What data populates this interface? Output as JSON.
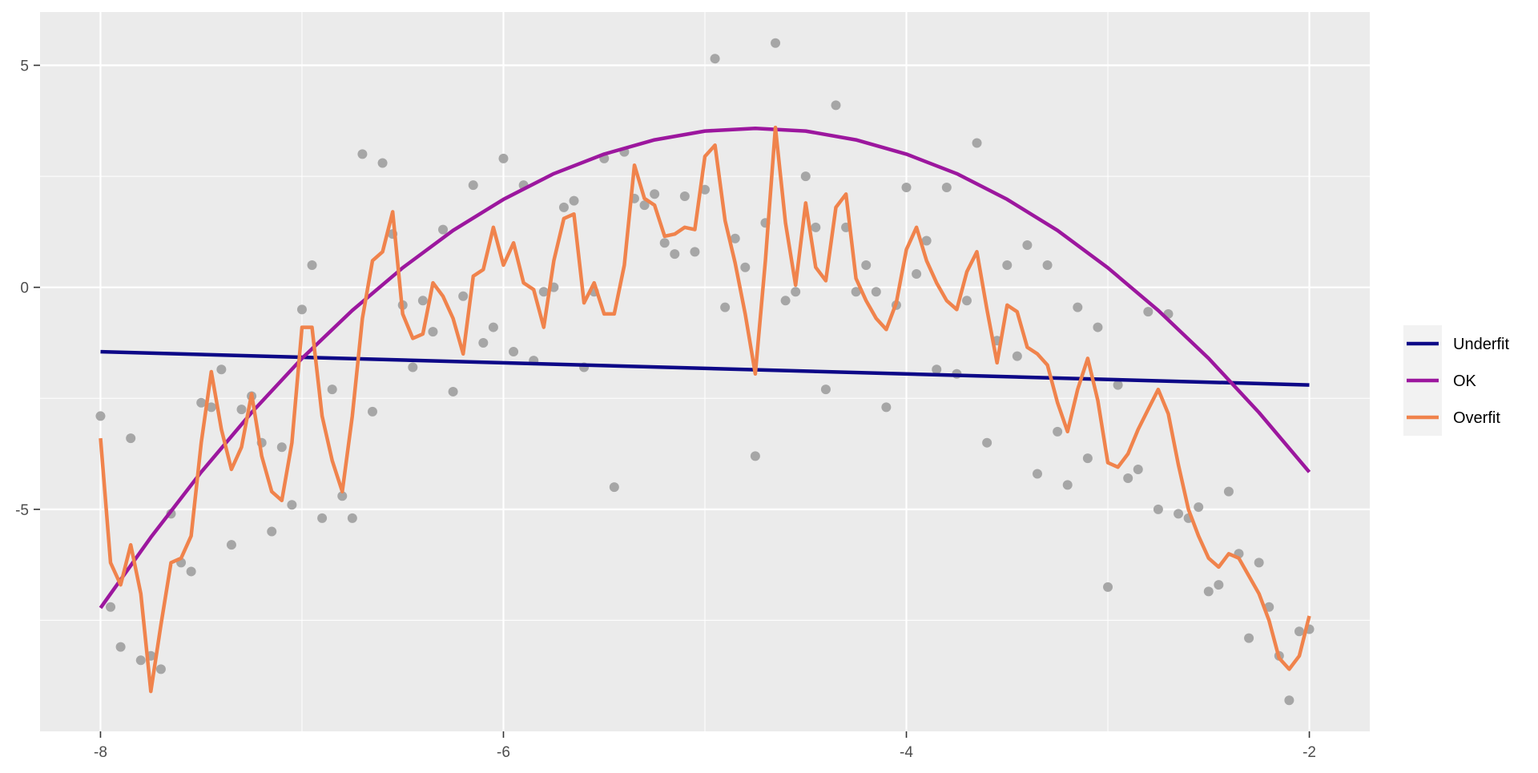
{
  "chart_data": {
    "type": "line",
    "title": "",
    "xlabel": "",
    "ylabel": "",
    "xlim": [
      -8.3,
      -1.7
    ],
    "ylim": [
      -10,
      6.2
    ],
    "x_ticks": [
      -8,
      -6,
      -4,
      -2
    ],
    "x_tick_labels": [
      "-8",
      "-6",
      "-4",
      "-2"
    ],
    "y_ticks": [
      5,
      0,
      -5
    ],
    "y_tick_labels": [
      "5",
      "0",
      "-5"
    ],
    "grid": true,
    "legend": {
      "position": "right",
      "entries": [
        "Underfit",
        "OK",
        "Overfit"
      ]
    },
    "colors": {
      "panel_background": "#EBEBEB",
      "grid": "#FFFFFF",
      "points": "#A6A6A6",
      "Underfit": "#0D0887",
      "OK": "#9C179E",
      "Overfit": "#F0834C"
    },
    "points": {
      "x": [
        -8,
        -7.95,
        -7.9,
        -7.85,
        -7.8,
        -7.75,
        -7.7,
        -7.65,
        -7.6,
        -7.55,
        -7.5,
        -7.45,
        -7.4,
        -7.35,
        -7.3,
        -7.25,
        -7.2,
        -7.15,
        -7.1,
        -7.05,
        -7,
        -6.95,
        -6.9,
        -6.85,
        -6.8,
        -6.75,
        -6.7,
        -6.65,
        -6.6,
        -6.55,
        -6.5,
        -6.45,
        -6.4,
        -6.35,
        -6.3,
        -6.25,
        -6.2,
        -6.15,
        -6.1,
        -6.05,
        -6,
        -5.95,
        -5.9,
        -5.85,
        -5.8,
        -5.75,
        -5.7,
        -5.65,
        -5.6,
        -5.55,
        -5.5,
        -5.45,
        -5.4,
        -5.35,
        -5.3,
        -5.25,
        -5.2,
        -5.15,
        -5.1,
        -5.05,
        -5,
        -4.95,
        -4.9,
        -4.85,
        -4.8,
        -4.75,
        -4.7,
        -4.65,
        -4.6,
        -4.55,
        -4.5,
        -4.45,
        -4.4,
        -4.35,
        -4.3,
        -4.25,
        -4.2,
        -4.15,
        -4.1,
        -4.05,
        -4,
        -3.95,
        -3.9,
        -3.85,
        -3.8,
        -3.75,
        -3.7,
        -3.65,
        -3.6,
        -3.55,
        -3.5,
        -3.45,
        -3.4,
        -3.35,
        -3.3,
        -3.25,
        -3.2,
        -3.15,
        -3.1,
        -3.05,
        -3,
        -2.95,
        -2.9,
        -2.85,
        -2.8,
        -2.75,
        -2.7,
        -2.65,
        -2.6,
        -2.55,
        -2.5,
        -2.45,
        -2.4,
        -2.35,
        -2.3,
        -2.25,
        -2.2,
        -2.15,
        -2.1,
        -2.05,
        -2
      ],
      "y": [
        -2.9,
        -7.2,
        -8.1,
        -3.4,
        -8.4,
        -8.3,
        -8.6,
        -5.1,
        -6.2,
        -6.4,
        -2.6,
        -2.7,
        -1.85,
        -5.8,
        -2.75,
        -2.45,
        -3.5,
        -5.5,
        -3.6,
        -4.9,
        -0.5,
        0.5,
        -5.2,
        -2.3,
        -4.7,
        -5.2,
        3.0,
        -2.8,
        2.8,
        1.2,
        -0.4,
        -1.8,
        -0.3,
        -1.0,
        1.3,
        -2.35,
        -0.2,
        2.3,
        -1.25,
        -0.9,
        2.9,
        -1.45,
        2.3,
        -1.65,
        -0.1,
        0,
        1.8,
        1.95,
        -1.8,
        -0.1,
        2.9,
        -4.5,
        3.05,
        2.0,
        1.85,
        2.1,
        1.0,
        0.75,
        2.05,
        0.8,
        2.2,
        5.15,
        -0.45,
        1.1,
        0.45,
        -3.8,
        1.45,
        5.5,
        -0.3,
        -0.1,
        2.5,
        1.35,
        -2.3,
        4.1,
        1.35,
        -0.1,
        0.5,
        -0.1,
        -2.7,
        -0.4,
        2.25,
        0.3,
        1.05,
        -1.85,
        2.25,
        -1.95,
        -0.3,
        3.25,
        -3.5,
        -1.2,
        0.5,
        -1.55,
        0.95,
        -4.2,
        0.5,
        -3.25,
        -4.45,
        -0.45,
        -3.85,
        -0.9,
        -6.75,
        -2.2,
        -4.3,
        -4.1,
        -0.55,
        -5.0,
        -0.6,
        -5.1,
        -5.2,
        -4.95,
        -6.85,
        -6.7,
        -4.6,
        -6.0,
        -7.9,
        -6.2,
        -7.2,
        -8.3,
        -9.3,
        -7.75,
        -7.7
      ]
    },
    "series": [
      {
        "name": "Underfit",
        "x": [
          -8,
          -2
        ],
        "y": [
          -1.45,
          -2.2
        ]
      },
      {
        "name": "OK",
        "x": [
          -8,
          -7.75,
          -7.5,
          -7.25,
          -7,
          -6.75,
          -6.5,
          -6.25,
          -6,
          -5.75,
          -5.5,
          -5.25,
          -5,
          -4.75,
          -4.5,
          -4.25,
          -4,
          -3.75,
          -3.5,
          -3.25,
          -3,
          -2.75,
          -2.5,
          -2.25,
          -2
        ],
        "y": [
          -7.22,
          -5.63,
          -4.16,
          -2.82,
          -1.6,
          -0.52,
          0.44,
          1.28,
          1.98,
          2.56,
          3.0,
          3.32,
          3.52,
          3.58,
          3.52,
          3.32,
          3.0,
          2.56,
          1.98,
          1.28,
          0.44,
          -0.52,
          -1.6,
          -2.82,
          -4.16
        ]
      },
      {
        "name": "Overfit",
        "x": [
          -8,
          -7.95,
          -7.9,
          -7.85,
          -7.8,
          -7.75,
          -7.7,
          -7.65,
          -7.6,
          -7.55,
          -7.5,
          -7.45,
          -7.4,
          -7.35,
          -7.3,
          -7.25,
          -7.2,
          -7.15,
          -7.1,
          -7.05,
          -7,
          -6.95,
          -6.9,
          -6.85,
          -6.8,
          -6.75,
          -6.7,
          -6.65,
          -6.6,
          -6.55,
          -6.5,
          -6.45,
          -6.4,
          -6.35,
          -6.3,
          -6.25,
          -6.2,
          -6.15,
          -6.1,
          -6.05,
          -6,
          -5.95,
          -5.9,
          -5.85,
          -5.8,
          -5.75,
          -5.7,
          -5.65,
          -5.6,
          -5.55,
          -5.5,
          -5.45,
          -5.4,
          -5.35,
          -5.3,
          -5.25,
          -5.2,
          -5.15,
          -5.1,
          -5.05,
          -5,
          -4.95,
          -4.9,
          -4.85,
          -4.8,
          -4.75,
          -4.7,
          -4.65,
          -4.6,
          -4.55,
          -4.5,
          -4.45,
          -4.4,
          -4.35,
          -4.3,
          -4.25,
          -4.2,
          -4.15,
          -4.1,
          -4.05,
          -4,
          -3.95,
          -3.9,
          -3.85,
          -3.8,
          -3.75,
          -3.7,
          -3.65,
          -3.6,
          -3.55,
          -3.5,
          -3.45,
          -3.4,
          -3.35,
          -3.3,
          -3.25,
          -3.2,
          -3.15,
          -3.1,
          -3.05,
          -3,
          -2.95,
          -2.9,
          -2.85,
          -2.8,
          -2.75,
          -2.7,
          -2.65,
          -2.6,
          -2.55,
          -2.5,
          -2.45,
          -2.4,
          -2.35,
          -2.3,
          -2.25,
          -2.2,
          -2.15,
          -2.1,
          -2.05,
          -2
        ],
        "y": [
          -3.4,
          -6.2,
          -6.7,
          -5.8,
          -6.9,
          -9.1,
          -7.6,
          -6.2,
          -6.1,
          -5.6,
          -3.5,
          -1.9,
          -3.2,
          -4.1,
          -3.6,
          -2.4,
          -3.8,
          -4.6,
          -4.8,
          -3.5,
          -0.9,
          -0.9,
          -2.9,
          -3.9,
          -4.6,
          -2.9,
          -0.7,
          0.6,
          0.8,
          1.7,
          -0.6,
          -1.15,
          -1.05,
          0.1,
          -0.2,
          -0.7,
          -1.5,
          0.25,
          0.4,
          1.35,
          0.5,
          1.0,
          0.1,
          -0.05,
          -0.9,
          0.6,
          1.55,
          1.65,
          -0.35,
          0.1,
          -0.6,
          -0.6,
          0.5,
          2.75,
          2.0,
          1.85,
          1.15,
          1.2,
          1.35,
          1.3,
          2.95,
          3.2,
          1.5,
          0.55,
          -0.6,
          -1.95,
          0.6,
          3.6,
          1.45,
          0.05,
          1.9,
          0.45,
          0.15,
          1.8,
          2.1,
          0.2,
          -0.3,
          -0.7,
          -0.95,
          -0.35,
          0.85,
          1.35,
          0.6,
          0.1,
          -0.3,
          -0.5,
          0.35,
          0.8,
          -0.5,
          -1.7,
          -0.4,
          -0.55,
          -1.35,
          -1.5,
          -1.75,
          -2.6,
          -3.25,
          -2.3,
          -1.6,
          -2.55,
          -3.95,
          -4.05,
          -3.75,
          -3.2,
          -2.75,
          -2.3,
          -2.85,
          -4.0,
          -5.0,
          -5.6,
          -6.1,
          -6.3,
          -6.0,
          -6.1,
          -6.5,
          -6.9,
          -7.5,
          -8.35,
          -8.6,
          -8.3,
          -7.4
        ]
      }
    ]
  }
}
